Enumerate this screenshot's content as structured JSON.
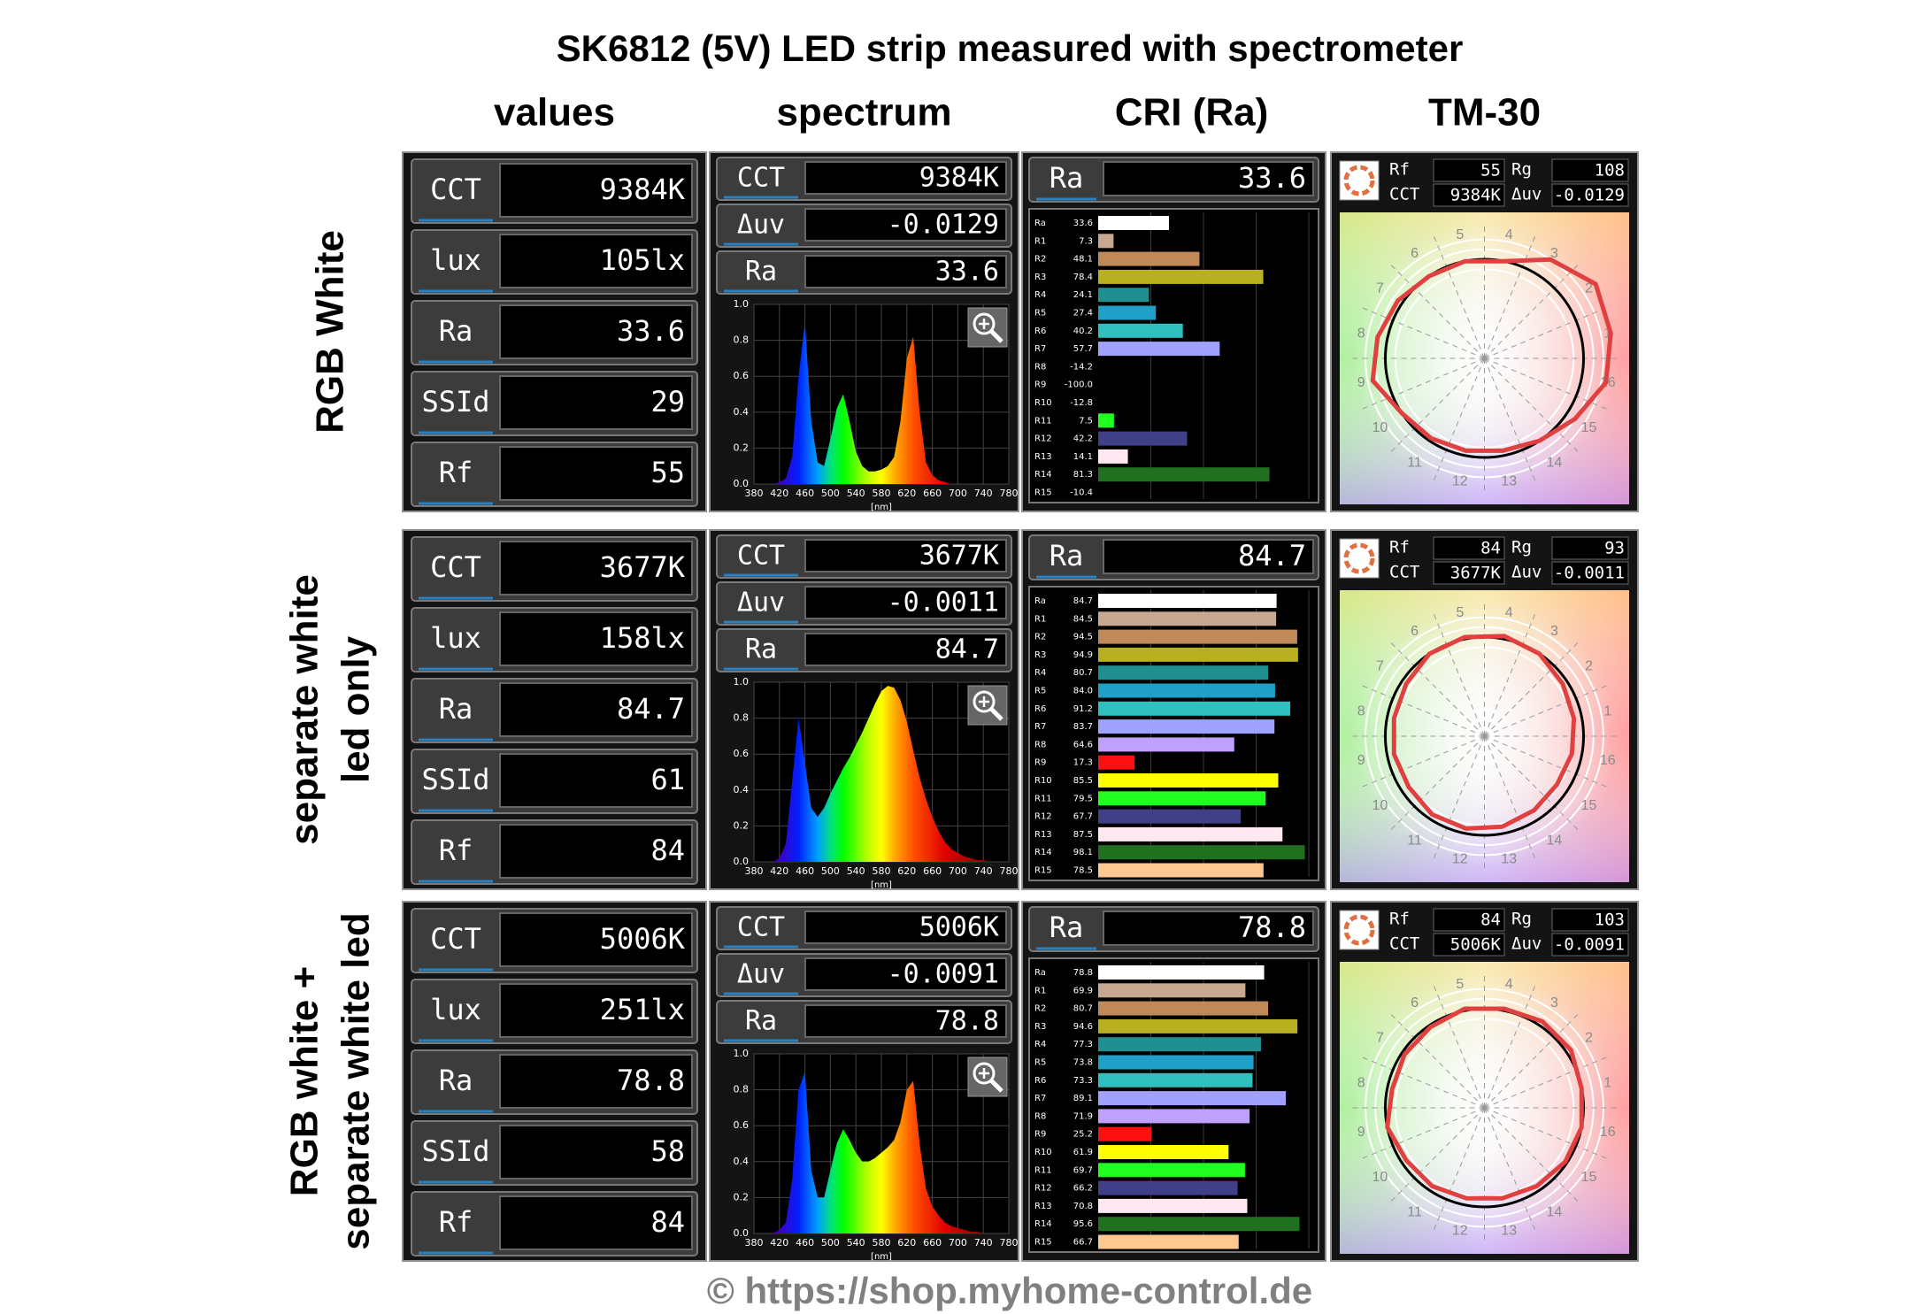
{
  "title": "SK6812 (5V) LED strip measured with spectrometer",
  "columns": [
    "values",
    "spectrum",
    "CRI (Ra)",
    "TM-30"
  ],
  "footer": "© https://shop.myhome-control.de",
  "spectrum_axes": {
    "x": [
      380,
      390,
      400,
      410,
      420,
      430,
      440,
      450,
      460,
      470,
      480,
      490,
      500,
      510,
      520,
      530,
      540,
      550,
      560,
      570,
      580,
      590,
      600,
      610,
      620,
      630,
      640,
      650,
      660,
      670,
      680,
      690,
      700,
      710,
      720,
      730,
      740,
      750,
      760,
      770,
      780
    ],
    "xlim": [
      380,
      780
    ],
    "xticks": [
      380,
      420,
      460,
      500,
      540,
      580,
      620,
      660,
      700,
      740,
      780
    ],
    "ylim": [
      0,
      1
    ],
    "yticks": [
      {
        "value": 0,
        "label": "0.0"
      },
      {
        "value": 0.2,
        "label": "0.2"
      },
      {
        "value": 0.4,
        "label": "0.4"
      },
      {
        "value": 0.6,
        "label": "0.6"
      },
      {
        "value": 0.8,
        "label": "0.8"
      },
      {
        "value": 1,
        "label": "1.0"
      }
    ],
    "x_label": "[nm]"
  },
  "cri_names": [
    "Ra",
    "R1",
    "R2",
    "R3",
    "R4",
    "R5",
    "R6",
    "R7",
    "R8",
    "R9",
    "R10",
    "R11",
    "R12",
    "R13",
    "R14",
    "R15"
  ],
  "cri_colors": [
    "#ffffff",
    "#c8a890",
    "#c08a58",
    "#b8b020",
    "#1f8f90",
    "#20a0c8",
    "#30c0c0",
    "#a0a0ff",
    "#c0a0ff",
    "#ff1010",
    "#ffff00",
    "#20ff20",
    "#404088",
    "#ffe8f0",
    "#207020",
    "#ffc890"
  ],
  "tm30_hue_bins": [
    1,
    2,
    3,
    4,
    5,
    6,
    7,
    8,
    9,
    10,
    11,
    12,
    13,
    14,
    15,
    16
  ],
  "rows": [
    {
      "label": [
        "RGB White"
      ],
      "values": [
        {
          "name": "CCT",
          "value": "9384K"
        },
        {
          "name": "lux",
          "value": "105lx"
        },
        {
          "name": "Ra",
          "value": "33.6"
        },
        {
          "name": "SSId",
          "value": "29"
        },
        {
          "name": "Rf",
          "value": "55"
        }
      ],
      "spectrum_fields": [
        {
          "name": "CCT",
          "value": "9384K"
        },
        {
          "name": "Δuv",
          "value": "-0.0129"
        },
        {
          "name": "Ra",
          "value": "33.6"
        }
      ],
      "spectrum": [
        0,
        0,
        0,
        0,
        0.01,
        0.03,
        0.15,
        0.6,
        0.9,
        0.35,
        0.12,
        0.1,
        0.25,
        0.42,
        0.5,
        0.35,
        0.18,
        0.1,
        0.07,
        0.07,
        0.08,
        0.1,
        0.15,
        0.35,
        0.7,
        0.82,
        0.4,
        0.12,
        0.05,
        0.02,
        0.01,
        0,
        0,
        0,
        0,
        0,
        0,
        0,
        0,
        0,
        0
      ],
      "cri_ra": {
        "name": "Ra",
        "value": "33.6"
      },
      "cri_values": [
        33.6,
        7.3,
        48.1,
        78.4,
        24.1,
        27.4,
        40.2,
        57.7,
        -14.2,
        -100,
        -12.8,
        7.5,
        42.2,
        14.1,
        81.3,
        -10.4
      ],
      "cri_value_labels": [
        "33.6",
        "7.3",
        "48.1",
        "78.4",
        "24.1",
        "27.4",
        "40.2",
        "57.7",
        "-14.2",
        "-100.0",
        "-12.8",
        "7.5",
        "42.2",
        "14.1",
        "81.3",
        "-10.4"
      ],
      "tm30": {
        "fields": [
          {
            "name": "Rf",
            "value": "55"
          },
          {
            "name": "Rg",
            "value": "108"
          },
          {
            "name": "CCT",
            "value": "9384K"
          },
          {
            "name": "Δuv",
            "value": "-0.0129"
          }
        ],
        "vector_radii": [
          1.3,
          1.35,
          1.2,
          1.0,
          1.0,
          1.0,
          1.05,
          1.1,
          1.15,
          1.0,
          0.97,
          0.95,
          0.95,
          1.0,
          1.1,
          1.25
        ]
      }
    },
    {
      "label": [
        "separate white",
        "led only"
      ],
      "values": [
        {
          "name": "CCT",
          "value": "3677K"
        },
        {
          "name": "lux",
          "value": "158lx"
        },
        {
          "name": "Ra",
          "value": "84.7"
        },
        {
          "name": "SSId",
          "value": "61"
        },
        {
          "name": "Rf",
          "value": "84"
        }
      ],
      "spectrum_fields": [
        {
          "name": "CCT",
          "value": "3677K"
        },
        {
          "name": "Δuv",
          "value": "-0.0011"
        },
        {
          "name": "Ra",
          "value": "84.7"
        }
      ],
      "spectrum": [
        0,
        0,
        0,
        0,
        0.02,
        0.1,
        0.45,
        0.8,
        0.55,
        0.3,
        0.25,
        0.3,
        0.38,
        0.45,
        0.52,
        0.58,
        0.65,
        0.72,
        0.8,
        0.88,
        0.95,
        0.98,
        0.97,
        0.9,
        0.78,
        0.62,
        0.47,
        0.35,
        0.25,
        0.17,
        0.11,
        0.07,
        0.05,
        0.03,
        0.02,
        0.01,
        0.01,
        0,
        0,
        0,
        0
      ],
      "cri_ra": {
        "name": "Ra",
        "value": "84.7"
      },
      "cri_values": [
        84.7,
        84.5,
        94.5,
        94.9,
        80.7,
        84.0,
        91.2,
        83.7,
        64.6,
        17.3,
        85.5,
        79.5,
        67.7,
        87.5,
        98.1,
        78.5
      ],
      "cri_value_labels": [
        "84.7",
        "84.5",
        "94.5",
        "94.9",
        "80.7",
        "84.0",
        "91.2",
        "83.7",
        "64.6",
        "17.3",
        "85.5",
        "79.5",
        "67.7",
        "87.5",
        "98.1",
        "78.5"
      ],
      "tm30": {
        "fields": [
          {
            "name": "Rf",
            "value": "84"
          },
          {
            "name": "Rg",
            "value": "93"
          },
          {
            "name": "CCT",
            "value": "3677K"
          },
          {
            "name": "Δuv",
            "value": "-0.0011"
          }
        ],
        "vector_radii": [
          0.92,
          0.95,
          1.0,
          1.03,
          1.02,
          1.0,
          0.95,
          0.93,
          0.93,
          0.92,
          0.95,
          0.95,
          0.93,
          0.9,
          0.88,
          0.9
        ]
      }
    },
    {
      "label": [
        "RGB white +",
        "separate white led"
      ],
      "values": [
        {
          "name": "CCT",
          "value": "5006K"
        },
        {
          "name": "lux",
          "value": "251lx"
        },
        {
          "name": "Ra",
          "value": "78.8"
        },
        {
          "name": "SSId",
          "value": "58"
        },
        {
          "name": "Rf",
          "value": "84"
        }
      ],
      "spectrum_fields": [
        {
          "name": "CCT",
          "value": "5006K"
        },
        {
          "name": "Δuv",
          "value": "-0.0091"
        },
        {
          "name": "Ra",
          "value": "78.8"
        }
      ],
      "spectrum": [
        0,
        0,
        0,
        0,
        0.02,
        0.06,
        0.3,
        0.8,
        0.9,
        0.35,
        0.2,
        0.2,
        0.35,
        0.5,
        0.58,
        0.52,
        0.45,
        0.4,
        0.4,
        0.42,
        0.45,
        0.48,
        0.52,
        0.62,
        0.8,
        0.85,
        0.5,
        0.25,
        0.15,
        0.1,
        0.06,
        0.04,
        0.03,
        0.02,
        0.01,
        0.01,
        0,
        0,
        0,
        0,
        0
      ],
      "cri_ra": {
        "name": "Ra",
        "value": "78.8"
      },
      "cri_values": [
        78.8,
        69.9,
        80.7,
        94.6,
        77.3,
        73.8,
        73.3,
        89.1,
        71.9,
        25.2,
        61.9,
        69.7,
        66.2,
        70.8,
        95.6,
        66.7
      ],
      "cri_value_labels": [
        "78.8",
        "69.9",
        "80.7",
        "94.6",
        "77.3",
        "73.8",
        "73.3",
        "89.1",
        "71.9",
        "25.2",
        "61.9",
        "69.7",
        "66.2",
        "70.8",
        "95.6",
        "66.7"
      ],
      "tm30": {
        "fields": [
          {
            "name": "Rf",
            "value": "84"
          },
          {
            "name": "Rg",
            "value": "103"
          },
          {
            "name": "CCT",
            "value": "5006K"
          },
          {
            "name": "Δuv",
            "value": "-0.0091"
          }
        ],
        "vector_radii": [
          1.0,
          1.05,
          1.05,
          1.02,
          1.02,
          0.98,
          0.97,
          0.95,
          1.0,
          0.95,
          0.95,
          0.93,
          0.93,
          0.95,
          0.98,
          1.0
        ]
      }
    }
  ]
}
